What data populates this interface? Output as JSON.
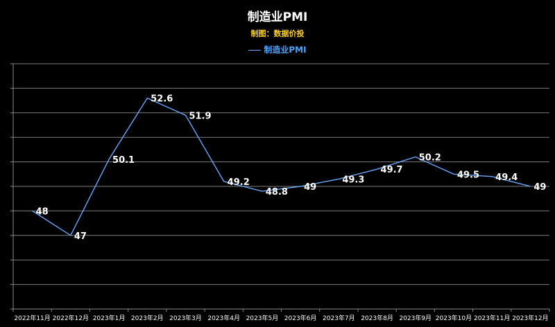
{
  "chart_data": {
    "type": "line",
    "title": "制造业PMI",
    "subtitle": "制图：数据价投",
    "legend": {
      "label": "制造业PMI",
      "position": "top-center"
    },
    "categories": [
      "2022年11月",
      "2022年12月",
      "2023年1月",
      "2023年2月",
      "2023年3月",
      "2023年4月",
      "2023年5月",
      "2023年6月",
      "2023年7月",
      "2023年8月",
      "2023年9月",
      "2023年10月",
      "2023年11月",
      "2023年12月"
    ],
    "series": [
      {
        "name": "制造业PMI",
        "values": [
          48,
          47,
          50.1,
          52.6,
          51.9,
          49.2,
          48.8,
          49,
          49.3,
          49.7,
          50.2,
          49.5,
          49.4,
          49
        ]
      }
    ],
    "ylim": [
      44,
      54
    ],
    "y_grid_step": 1,
    "grid": true,
    "y_tick_labels": false,
    "colors": {
      "series": "#6aa8ff",
      "background": "#000000",
      "grid": "#7f7f7f",
      "legend_text": "#4fa3ff",
      "subtitle_text": "#ffd21f"
    }
  }
}
